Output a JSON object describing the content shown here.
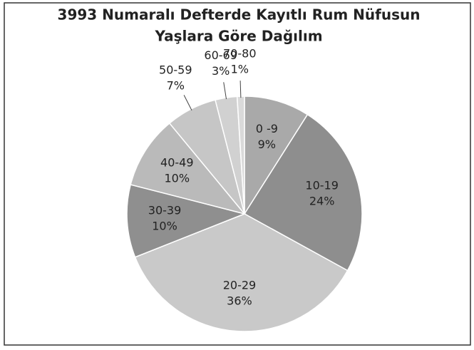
{
  "chart_data": {
    "type": "pie",
    "title": [
      "3993 Numaralı Defterde Kayıtlı Rum Nüfusun",
      "Yaşlara Göre Dağılım"
    ],
    "categories": [
      "0 -9",
      "10-19",
      "20-29",
      "30-39",
      "40-49",
      "50-59",
      "60-69",
      "70-80"
    ],
    "values": [
      9,
      24,
      36,
      10,
      10,
      7,
      3,
      1
    ],
    "value_labels": [
      "9%",
      "24%",
      "36%",
      "10%",
      "10%",
      "7%",
      "3%",
      "1%"
    ],
    "colors": [
      "#a9a9a9",
      "#8e8e8e",
      "#c9c9c9",
      "#8f8f8f",
      "#bababa",
      "#c6c6c6",
      "#d1d1d1",
      "#dadada"
    ]
  }
}
